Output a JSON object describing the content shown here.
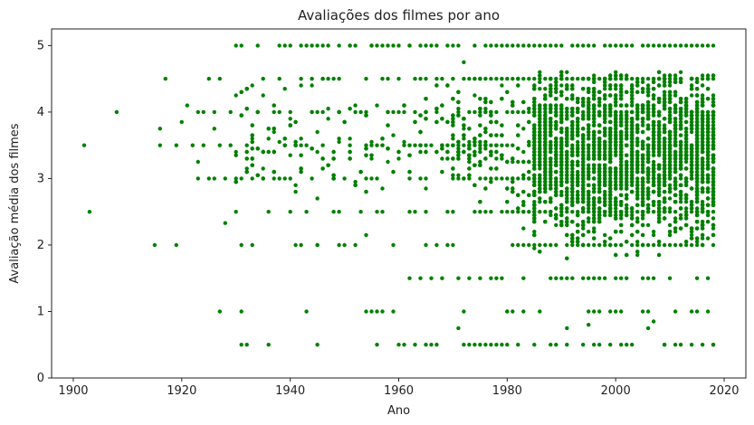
{
  "chart_data": {
    "type": "scatter",
    "title": "Avaliações dos filmes por ano",
    "xlabel": "Ano",
    "ylabel": "Avaliação média dos filmes",
    "xlim": [
      1896,
      2024
    ],
    "ylim": [
      0,
      5.25
    ],
    "x_ticks": [
      1900,
      1920,
      1940,
      1960,
      1980,
      2000,
      2020
    ],
    "y_ticks": [
      0,
      1,
      2,
      3,
      4,
      5
    ],
    "grid": false,
    "point_color": "#008000",
    "points_sparse": [
      [
        1902,
        3.5
      ],
      [
        1903,
        2.5
      ],
      [
        1908,
        4.0
      ],
      [
        1915,
        2.0
      ],
      [
        1916,
        3.5
      ],
      [
        1916,
        3.75
      ],
      [
        1917,
        4.5
      ],
      [
        1919,
        2.0
      ],
      [
        1919,
        3.5
      ],
      [
        1920,
        3.85
      ],
      [
        1921,
        4.1
      ],
      [
        1922,
        3.5
      ],
      [
        1923,
        3.0
      ],
      [
        1923,
        3.25
      ],
      [
        1923,
        4.0
      ],
      [
        1924,
        3.5
      ],
      [
        1924,
        4.0
      ],
      [
        1925,
        3.0
      ],
      [
        1925,
        4.5
      ],
      [
        1926,
        3.0
      ],
      [
        1926,
        3.75
      ],
      [
        1926,
        4.0
      ],
      [
        1927,
        1.0
      ],
      [
        1927,
        3.5
      ],
      [
        1927,
        4.5
      ],
      [
        1928,
        2.33
      ],
      [
        1928,
        3.0
      ],
      [
        1929,
        3.5
      ],
      [
        1929,
        4.0
      ],
      [
        1930,
        3.0
      ],
      [
        1930,
        4.25
      ],
      [
        1931,
        0.5
      ],
      [
        1931,
        1.0
      ],
      [
        1931,
        2.0
      ],
      [
        1931,
        5.0
      ],
      [
        1932,
        0.5
      ],
      [
        1932,
        3.5
      ],
      [
        1933,
        3.0
      ],
      [
        1934,
        5.0
      ],
      [
        1935,
        4.5
      ],
      [
        1936,
        0.5
      ],
      [
        1936,
        2.5
      ],
      [
        1937,
        3.0
      ],
      [
        1938,
        4.0
      ],
      [
        1940,
        2.5
      ],
      [
        1940,
        5.0
      ],
      [
        1941,
        3.5
      ],
      [
        1942,
        2.0
      ],
      [
        1942,
        5.0
      ],
      [
        1943,
        1.0
      ],
      [
        1943,
        2.5
      ],
      [
        1944,
        5.0
      ],
      [
        1945,
        0.5
      ],
      [
        1945,
        2.0
      ],
      [
        1946,
        4.5
      ],
      [
        1947,
        5.0
      ],
      [
        1949,
        2.0
      ],
      [
        1949,
        2.5
      ],
      [
        1951,
        5.0
      ],
      [
        1952,
        2.0
      ],
      [
        1953,
        2.5
      ],
      [
        1954,
        1.0
      ],
      [
        1954,
        2.15
      ],
      [
        1955,
        1.0
      ],
      [
        1955,
        5.0
      ],
      [
        1956,
        0.5
      ],
      [
        1956,
        1.0
      ],
      [
        1957,
        1.0
      ],
      [
        1957,
        2.5
      ],
      [
        1958,
        4.5
      ],
      [
        1959,
        1.0
      ],
      [
        1959,
        2.0
      ],
      [
        1960,
        0.5
      ],
      [
        1960,
        5.0
      ],
      [
        1961,
        0.5
      ],
      [
        1962,
        1.5
      ],
      [
        1962,
        5.0
      ],
      [
        1963,
        0.5
      ],
      [
        1963,
        2.5
      ],
      [
        1964,
        1.5
      ],
      [
        1965,
        0.5
      ],
      [
        1965,
        2.0
      ],
      [
        1966,
        0.5
      ],
      [
        1966,
        1.5
      ],
      [
        1967,
        0.5
      ],
      [
        1967,
        2.0
      ],
      [
        1968,
        1.5
      ],
      [
        1970,
        2.0
      ],
      [
        1971,
        0.75
      ],
      [
        1971,
        1.5
      ],
      [
        1972,
        0.5
      ],
      [
        1972,
        1.0
      ],
      [
        1972,
        4.75
      ],
      [
        1973,
        0.5
      ],
      [
        1973,
        1.5
      ],
      [
        1974,
        0.5
      ],
      [
        1974,
        4.5
      ],
      [
        1975,
        0.5
      ],
      [
        1975,
        1.5
      ],
      [
        1976,
        0.5
      ],
      [
        1977,
        0.5
      ],
      [
        1977,
        1.5
      ],
      [
        1978,
        0.5
      ],
      [
        1978,
        1.5
      ],
      [
        1979,
        0.5
      ],
      [
        1979,
        1.5
      ],
      [
        1980,
        0.5
      ],
      [
        1980,
        1.0
      ],
      [
        1985,
        0.5
      ],
      [
        1988,
        0.5
      ],
      [
        1989,
        0.5
      ],
      [
        1991,
        0.75
      ],
      [
        1994,
        0.5
      ],
      [
        1995,
        0.8
      ],
      [
        1997,
        0.5
      ],
      [
        1999,
        0.5
      ],
      [
        2001,
        0.5
      ],
      [
        2003,
        0.5
      ],
      [
        2006,
        0.75
      ],
      [
        2007,
        0.85
      ],
      [
        2009,
        0.5
      ],
      [
        2012,
        0.5
      ],
      [
        2014,
        0.5
      ],
      [
        2016,
        0.5
      ],
      [
        2018,
        0.5
      ]
    ],
    "density_bands": [
      {
        "x_range": [
          1980,
          2018
        ],
        "rating_levels": [
          0.5,
          1.0,
          1.5,
          2.0,
          2.5,
          3.0,
          3.5,
          4.0,
          4.5,
          5.0
        ]
      },
      {
        "x_range": [
          1985,
          2018
        ],
        "y_range": [
          2.0,
          4.5
        ]
      }
    ]
  }
}
